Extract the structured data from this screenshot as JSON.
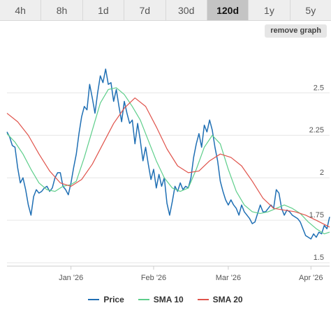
{
  "tabs": [
    {
      "label": "4h",
      "active": false
    },
    {
      "label": "8h",
      "active": false
    },
    {
      "label": "1d",
      "active": false
    },
    {
      "label": "7d",
      "active": false
    },
    {
      "label": "30d",
      "active": false
    },
    {
      "label": "120d",
      "active": true
    },
    {
      "label": "1y",
      "active": false
    },
    {
      "label": "5y",
      "active": false
    }
  ],
  "remove_graph_label": "remove graph",
  "colors": {
    "price": "#1f6fb4",
    "sma10": "#5dce8a",
    "sma20": "#e0534b"
  },
  "chart_data": {
    "type": "line",
    "title": "",
    "xlabel": "",
    "ylabel": "",
    "x_range": [
      "2025-12-08",
      "2026-04-08"
    ],
    "ylim": [
      1.48,
      2.78
    ],
    "y_ticks": [
      1.5,
      1.75,
      2,
      2.25,
      2.5
    ],
    "y_tick_labels": [
      "1.5",
      "1.75",
      "2",
      "2.25",
      "2.5"
    ],
    "x_ticks": [
      "2026-01-01",
      "2026-02-01",
      "2026-03-01",
      "2026-04-01"
    ],
    "x_tick_labels": [
      "Jan '26",
      "Feb '26",
      "Mar '26",
      "Apr '26"
    ],
    "grid": true,
    "legend": "bottom",
    "series": [
      {
        "name": "Price",
        "color": "#1f6fb4",
        "points": [
          [
            "2025-12-08",
            2.27
          ],
          [
            "2025-12-09",
            2.24
          ],
          [
            "2025-12-10",
            2.19
          ],
          [
            "2025-12-11",
            2.18
          ],
          [
            "2025-12-12",
            2.06
          ],
          [
            "2025-12-13",
            1.97
          ],
          [
            "2025-12-14",
            2.0
          ],
          [
            "2025-12-15",
            1.93
          ],
          [
            "2025-12-16",
            1.84
          ],
          [
            "2025-12-17",
            1.78
          ],
          [
            "2025-12-18",
            1.89
          ],
          [
            "2025-12-19",
            1.93
          ],
          [
            "2025-12-20",
            1.91
          ],
          [
            "2025-12-21",
            1.92
          ],
          [
            "2025-12-22",
            1.94
          ],
          [
            "2025-12-23",
            1.95
          ],
          [
            "2025-12-24",
            1.92
          ],
          [
            "2025-12-25",
            1.94
          ],
          [
            "2025-12-26",
            2.0
          ],
          [
            "2025-12-27",
            2.03
          ],
          [
            "2025-12-28",
            2.03
          ],
          [
            "2025-12-29",
            1.95
          ],
          [
            "2025-12-30",
            1.93
          ],
          [
            "2025-12-31",
            1.9
          ],
          [
            "2026-01-01",
            1.97
          ],
          [
            "2026-01-02",
            2.06
          ],
          [
            "2026-01-03",
            2.14
          ],
          [
            "2026-01-04",
            2.26
          ],
          [
            "2026-01-05",
            2.36
          ],
          [
            "2026-01-06",
            2.42
          ],
          [
            "2026-01-07",
            2.4
          ],
          [
            "2026-01-08",
            2.55
          ],
          [
            "2026-01-09",
            2.47
          ],
          [
            "2026-01-10",
            2.38
          ],
          [
            "2026-01-11",
            2.5
          ],
          [
            "2026-01-12",
            2.6
          ],
          [
            "2026-01-13",
            2.56
          ],
          [
            "2026-01-14",
            2.64
          ],
          [
            "2026-01-15",
            2.55
          ],
          [
            "2026-01-16",
            2.56
          ],
          [
            "2026-01-17",
            2.45
          ],
          [
            "2026-01-18",
            2.52
          ],
          [
            "2026-01-19",
            2.42
          ],
          [
            "2026-01-20",
            2.33
          ],
          [
            "2026-01-21",
            2.45
          ],
          [
            "2026-01-22",
            2.38
          ],
          [
            "2026-01-23",
            2.32
          ],
          [
            "2026-01-24",
            2.34
          ],
          [
            "2026-01-25",
            2.2
          ],
          [
            "2026-01-26",
            2.32
          ],
          [
            "2026-01-27",
            2.22
          ],
          [
            "2026-01-28",
            2.1
          ],
          [
            "2026-01-29",
            2.18
          ],
          [
            "2026-01-30",
            2.08
          ],
          [
            "2026-01-31",
            1.99
          ],
          [
            "2026-02-01",
            2.05
          ],
          [
            "2026-02-02",
            1.94
          ],
          [
            "2026-02-03",
            2.02
          ],
          [
            "2026-02-04",
            1.95
          ],
          [
            "2026-02-05",
            2.0
          ],
          [
            "2026-02-06",
            1.85
          ],
          [
            "2026-02-07",
            1.78
          ],
          [
            "2026-02-08",
            1.86
          ],
          [
            "2026-02-09",
            1.95
          ],
          [
            "2026-02-10",
            1.92
          ],
          [
            "2026-02-11",
            1.97
          ],
          [
            "2026-02-12",
            1.93
          ],
          [
            "2026-02-13",
            1.95
          ],
          [
            "2026-02-14",
            1.94
          ],
          [
            "2026-02-15",
            2.0
          ],
          [
            "2026-02-16",
            2.12
          ],
          [
            "2026-02-17",
            2.2
          ],
          [
            "2026-02-18",
            2.26
          ],
          [
            "2026-02-19",
            2.18
          ],
          [
            "2026-02-20",
            2.31
          ],
          [
            "2026-02-21",
            2.27
          ],
          [
            "2026-02-22",
            2.34
          ],
          [
            "2026-02-23",
            2.28
          ],
          [
            "2026-02-24",
            2.18
          ],
          [
            "2026-02-25",
            2.1
          ],
          [
            "2026-02-26",
            1.98
          ],
          [
            "2026-02-27",
            1.92
          ],
          [
            "2026-02-28",
            1.87
          ],
          [
            "2026-03-01",
            1.84
          ],
          [
            "2026-03-02",
            1.87
          ],
          [
            "2026-03-03",
            1.84
          ],
          [
            "2026-03-04",
            1.82
          ],
          [
            "2026-03-05",
            1.78
          ],
          [
            "2026-03-06",
            1.84
          ],
          [
            "2026-03-07",
            1.8
          ],
          [
            "2026-03-08",
            1.78
          ],
          [
            "2026-03-09",
            1.76
          ],
          [
            "2026-03-10",
            1.73
          ],
          [
            "2026-03-11",
            1.74
          ],
          [
            "2026-03-12",
            1.79
          ],
          [
            "2026-03-13",
            1.84
          ],
          [
            "2026-03-14",
            1.8
          ],
          [
            "2026-03-15",
            1.8
          ],
          [
            "2026-03-16",
            1.82
          ],
          [
            "2026-03-17",
            1.84
          ],
          [
            "2026-03-18",
            1.82
          ],
          [
            "2026-03-19",
            1.93
          ],
          [
            "2026-03-20",
            1.91
          ],
          [
            "2026-03-21",
            1.82
          ],
          [
            "2026-03-22",
            1.78
          ],
          [
            "2026-03-23",
            1.81
          ],
          [
            "2026-03-24",
            1.8
          ],
          [
            "2026-03-25",
            1.78
          ],
          [
            "2026-03-26",
            1.77
          ],
          [
            "2026-03-27",
            1.76
          ],
          [
            "2026-03-28",
            1.74
          ],
          [
            "2026-03-29",
            1.7
          ],
          [
            "2026-03-30",
            1.66
          ],
          [
            "2026-03-31",
            1.65
          ],
          [
            "2026-04-01",
            1.64
          ],
          [
            "2026-04-02",
            1.67
          ],
          [
            "2026-04-03",
            1.65
          ],
          [
            "2026-04-04",
            1.68
          ],
          [
            "2026-04-05",
            1.67
          ],
          [
            "2026-04-06",
            1.72
          ],
          [
            "2026-04-07",
            1.7
          ],
          [
            "2026-04-08",
            1.77
          ]
        ]
      },
      {
        "name": "SMA 10",
        "color": "#5dce8a",
        "points": [
          [
            "2025-12-08",
            2.26
          ],
          [
            "2025-12-11",
            2.21
          ],
          [
            "2025-12-14",
            2.14
          ],
          [
            "2025-12-17",
            2.05
          ],
          [
            "2025-12-20",
            1.97
          ],
          [
            "2025-12-23",
            1.93
          ],
          [
            "2025-12-26",
            1.92
          ],
          [
            "2025-12-29",
            1.95
          ],
          [
            "2026-01-01",
            1.96
          ],
          [
            "2026-01-03",
            1.98
          ],
          [
            "2026-01-06",
            2.12
          ],
          [
            "2026-01-09",
            2.28
          ],
          [
            "2026-01-12",
            2.44
          ],
          [
            "2026-01-15",
            2.52
          ],
          [
            "2026-01-18",
            2.53
          ],
          [
            "2026-01-21",
            2.49
          ],
          [
            "2026-01-24",
            2.42
          ],
          [
            "2026-01-27",
            2.34
          ],
          [
            "2026-01-30",
            2.22
          ],
          [
            "2026-02-02",
            2.1
          ],
          [
            "2026-02-05",
            2.0
          ],
          [
            "2026-02-08",
            1.94
          ],
          [
            "2026-02-11",
            1.92
          ],
          [
            "2026-02-14",
            1.94
          ],
          [
            "2026-02-17",
            2.05
          ],
          [
            "2026-02-20",
            2.18
          ],
          [
            "2026-02-23",
            2.25
          ],
          [
            "2026-02-26",
            2.2
          ],
          [
            "2026-03-01",
            2.05
          ],
          [
            "2026-03-04",
            1.92
          ],
          [
            "2026-03-07",
            1.84
          ],
          [
            "2026-03-10",
            1.8
          ],
          [
            "2026-03-13",
            1.79
          ],
          [
            "2026-03-16",
            1.8
          ],
          [
            "2026-03-19",
            1.82
          ],
          [
            "2026-03-22",
            1.84
          ],
          [
            "2026-03-25",
            1.82
          ],
          [
            "2026-03-28",
            1.79
          ],
          [
            "2026-03-31",
            1.74
          ],
          [
            "2026-04-03",
            1.7
          ],
          [
            "2026-04-06",
            1.67
          ],
          [
            "2026-04-08",
            1.68
          ]
        ]
      },
      {
        "name": "SMA 20",
        "color": "#e0534b",
        "points": [
          [
            "2025-12-08",
            2.38
          ],
          [
            "2025-12-12",
            2.33
          ],
          [
            "2025-12-16",
            2.25
          ],
          [
            "2025-12-20",
            2.14
          ],
          [
            "2025-12-24",
            2.04
          ],
          [
            "2025-12-28",
            1.97
          ],
          [
            "2026-01-01",
            1.95
          ],
          [
            "2026-01-05",
            1.99
          ],
          [
            "2026-01-09",
            2.08
          ],
          [
            "2026-01-13",
            2.2
          ],
          [
            "2026-01-17",
            2.32
          ],
          [
            "2026-01-21",
            2.41
          ],
          [
            "2026-01-25",
            2.47
          ],
          [
            "2026-01-29",
            2.42
          ],
          [
            "2026-02-02",
            2.3
          ],
          [
            "2026-02-06",
            2.17
          ],
          [
            "2026-02-10",
            2.07
          ],
          [
            "2026-02-14",
            2.03
          ],
          [
            "2026-02-18",
            2.04
          ],
          [
            "2026-02-22",
            2.1
          ],
          [
            "2026-02-26",
            2.14
          ],
          [
            "2026-03-02",
            2.12
          ],
          [
            "2026-03-06",
            2.07
          ],
          [
            "2026-03-10",
            1.98
          ],
          [
            "2026-03-14",
            1.88
          ],
          [
            "2026-03-18",
            1.82
          ],
          [
            "2026-03-22",
            1.81
          ],
          [
            "2026-03-26",
            1.8
          ],
          [
            "2026-03-30",
            1.78
          ],
          [
            "2026-04-03",
            1.75
          ],
          [
            "2026-04-08",
            1.71
          ]
        ]
      }
    ]
  }
}
